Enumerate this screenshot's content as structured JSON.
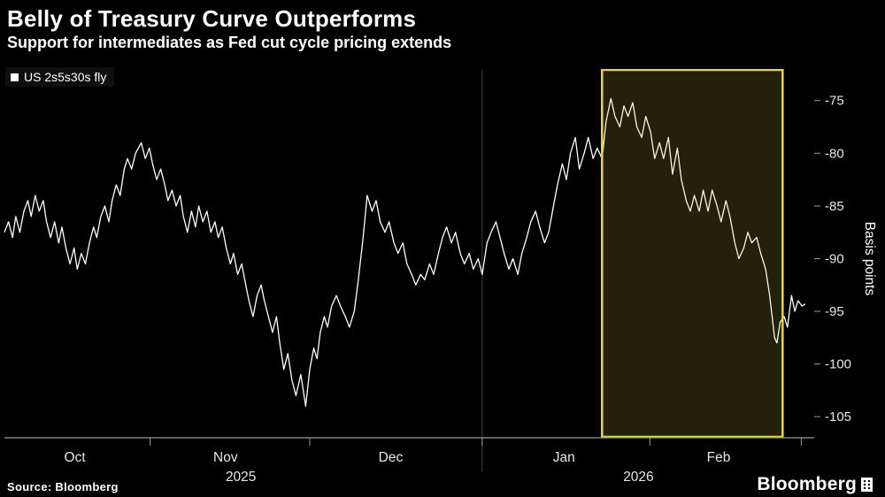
{
  "header": {
    "title": "Belly of Treasury Curve Outperforms",
    "subtitle": "Support for intermediates as Fed cut cycle pricing extends"
  },
  "legend": {
    "label": "US 2s5s30s fly",
    "swatch_color": "#FFFFFF"
  },
  "footer": {
    "source": "Source: Bloomberg",
    "brand": "Bloomberg"
  },
  "colors": {
    "background": "#000000",
    "line": "#FFFFFF",
    "axis": "#9a9a9a",
    "tick_text": "#e6e6e6",
    "year_divider": "#3d3d3d",
    "highlight_border": "#e3d54f",
    "highlight_fill": "rgba(222,205,70,0.16)"
  },
  "chart_data": {
    "type": "line",
    "title": "Belly of Treasury Curve Outperforms",
    "subtitle": "Support for intermediates as Fed cut cycle pricing extends",
    "ylabel": "Basis points",
    "xlabel": "",
    "ylim": [
      -107,
      -72
    ],
    "yticks": [
      -75,
      -80,
      -85,
      -90,
      -95,
      -100,
      -105
    ],
    "grid": false,
    "legend_position": "top-left",
    "x_axis": {
      "month_labels": [
        {
          "label": "Oct",
          "pos": 0.087
        },
        {
          "label": "Nov",
          "pos": 0.273
        },
        {
          "label": "Dec",
          "pos": 0.477
        },
        {
          "label": "Jan",
          "pos": 0.691
        },
        {
          "label": "Feb",
          "pos": 0.882
        }
      ],
      "year_labels": [
        {
          "label": "2025",
          "pos": 0.292
        },
        {
          "label": "2026",
          "pos": 0.783
        }
      ],
      "month_boundaries": [
        0.18,
        0.377,
        0.59,
        0.797,
        0.984
      ],
      "year_divider_pos": 0.59
    },
    "highlight": {
      "x0": 0.738,
      "x1": 0.961
    },
    "series": [
      {
        "name": "US 2s5s30s fly",
        "color": "#FFFFFF",
        "points": [
          [
            0.0,
            -87.5
          ],
          [
            0.005,
            -86.5
          ],
          [
            0.01,
            -88.0
          ],
          [
            0.014,
            -86.0
          ],
          [
            0.019,
            -87.5
          ],
          [
            0.024,
            -85.5
          ],
          [
            0.029,
            -84.5
          ],
          [
            0.033,
            -86.0
          ],
          [
            0.038,
            -84.0
          ],
          [
            0.043,
            -85.5
          ],
          [
            0.048,
            -84.5
          ],
          [
            0.052,
            -86.5
          ],
          [
            0.057,
            -88.0
          ],
          [
            0.062,
            -86.5
          ],
          [
            0.067,
            -88.5
          ],
          [
            0.071,
            -87.0
          ],
          [
            0.076,
            -89.0
          ],
          [
            0.081,
            -90.5
          ],
          [
            0.086,
            -89.0
          ],
          [
            0.09,
            -91.0
          ],
          [
            0.095,
            -89.5
          ],
          [
            0.1,
            -90.5
          ],
          [
            0.105,
            -88.5
          ],
          [
            0.11,
            -87.0
          ],
          [
            0.114,
            -88.0
          ],
          [
            0.119,
            -86.0
          ],
          [
            0.124,
            -85.0
          ],
          [
            0.129,
            -86.5
          ],
          [
            0.133,
            -84.5
          ],
          [
            0.138,
            -83.0
          ],
          [
            0.143,
            -84.0
          ],
          [
            0.148,
            -81.5
          ],
          [
            0.152,
            -80.5
          ],
          [
            0.157,
            -81.5
          ],
          [
            0.162,
            -80.0
          ],
          [
            0.169,
            -79.0
          ],
          [
            0.174,
            -80.5
          ],
          [
            0.179,
            -79.5
          ],
          [
            0.183,
            -81.0
          ],
          [
            0.188,
            -82.5
          ],
          [
            0.193,
            -81.5
          ],
          [
            0.198,
            -83.0
          ],
          [
            0.202,
            -84.5
          ],
          [
            0.207,
            -83.5
          ],
          [
            0.212,
            -85.0
          ],
          [
            0.217,
            -84.0
          ],
          [
            0.221,
            -86.0
          ],
          [
            0.226,
            -87.5
          ],
          [
            0.231,
            -85.5
          ],
          [
            0.236,
            -87.0
          ],
          [
            0.24,
            -85.0
          ],
          [
            0.245,
            -86.5
          ],
          [
            0.25,
            -85.5
          ],
          [
            0.255,
            -87.5
          ],
          [
            0.26,
            -86.5
          ],
          [
            0.264,
            -88.0
          ],
          [
            0.269,
            -87.0
          ],
          [
            0.274,
            -89.0
          ],
          [
            0.279,
            -90.5
          ],
          [
            0.283,
            -89.5
          ],
          [
            0.288,
            -91.5
          ],
          [
            0.293,
            -90.5
          ],
          [
            0.298,
            -92.5
          ],
          [
            0.302,
            -94.0
          ],
          [
            0.307,
            -95.5
          ],
          [
            0.312,
            -93.5
          ],
          [
            0.317,
            -92.5
          ],
          [
            0.321,
            -94.0
          ],
          [
            0.326,
            -95.5
          ],
          [
            0.331,
            -97.0
          ],
          [
            0.336,
            -95.5
          ],
          [
            0.34,
            -98.0
          ],
          [
            0.345,
            -100.5
          ],
          [
            0.35,
            -99.0
          ],
          [
            0.355,
            -101.5
          ],
          [
            0.36,
            -103.0
          ],
          [
            0.366,
            -101.0
          ],
          [
            0.372,
            -104.0
          ],
          [
            0.377,
            -100.5
          ],
          [
            0.382,
            -98.5
          ],
          [
            0.386,
            -99.5
          ],
          [
            0.39,
            -97.0
          ],
          [
            0.395,
            -95.5
          ],
          [
            0.399,
            -96.5
          ],
          [
            0.404,
            -94.5
          ],
          [
            0.41,
            -93.5
          ],
          [
            0.415,
            -94.5
          ],
          [
            0.421,
            -95.5
          ],
          [
            0.426,
            -96.5
          ],
          [
            0.432,
            -95.0
          ],
          [
            0.437,
            -92.0
          ],
          [
            0.443,
            -88.0
          ],
          [
            0.448,
            -84.0
          ],
          [
            0.454,
            -85.5
          ],
          [
            0.459,
            -84.5
          ],
          [
            0.464,
            -86.5
          ],
          [
            0.47,
            -87.5
          ],
          [
            0.475,
            -86.5
          ],
          [
            0.481,
            -88.5
          ],
          [
            0.486,
            -89.5
          ],
          [
            0.492,
            -88.5
          ],
          [
            0.497,
            -90.5
          ],
          [
            0.503,
            -91.5
          ],
          [
            0.508,
            -92.5
          ],
          [
            0.514,
            -91.5
          ],
          [
            0.519,
            -92.0
          ],
          [
            0.525,
            -90.5
          ],
          [
            0.53,
            -91.5
          ],
          [
            0.536,
            -89.5
          ],
          [
            0.541,
            -88.0
          ],
          [
            0.546,
            -87.0
          ],
          [
            0.552,
            -88.5
          ],
          [
            0.557,
            -87.5
          ],
          [
            0.563,
            -89.5
          ],
          [
            0.568,
            -90.5
          ],
          [
            0.574,
            -89.5
          ],
          [
            0.579,
            -91.0
          ],
          [
            0.585,
            -90.0
          ],
          [
            0.59,
            -91.5
          ],
          [
            0.596,
            -88.5
          ],
          [
            0.601,
            -87.5
          ],
          [
            0.607,
            -86.5
          ],
          [
            0.612,
            -88.0
          ],
          [
            0.617,
            -89.5
          ],
          [
            0.623,
            -91.0
          ],
          [
            0.628,
            -90.0
          ],
          [
            0.634,
            -91.5
          ],
          [
            0.639,
            -89.5
          ],
          [
            0.645,
            -88.0
          ],
          [
            0.65,
            -86.5
          ],
          [
            0.656,
            -85.5
          ],
          [
            0.661,
            -87.0
          ],
          [
            0.667,
            -88.5
          ],
          [
            0.672,
            -87.5
          ],
          [
            0.678,
            -85.0
          ],
          [
            0.683,
            -83.0
          ],
          [
            0.689,
            -81.0
          ],
          [
            0.694,
            -82.5
          ],
          [
            0.699,
            -80.0
          ],
          [
            0.705,
            -78.5
          ],
          [
            0.71,
            -81.5
          ],
          [
            0.716,
            -80.0
          ],
          [
            0.721,
            -78.5
          ],
          [
            0.727,
            -80.5
          ],
          [
            0.732,
            -79.5
          ],
          [
            0.738,
            -80.5
          ],
          [
            0.743,
            -77.0
          ],
          [
            0.749,
            -74.8
          ],
          [
            0.754,
            -76.5
          ],
          [
            0.76,
            -77.5
          ],
          [
            0.765,
            -75.5
          ],
          [
            0.77,
            -76.5
          ],
          [
            0.776,
            -75.2
          ],
          [
            0.781,
            -77.5
          ],
          [
            0.787,
            -78.5
          ],
          [
            0.792,
            -76.5
          ],
          [
            0.798,
            -78.0
          ],
          [
            0.803,
            -80.5
          ],
          [
            0.809,
            -79.0
          ],
          [
            0.814,
            -80.5
          ],
          [
            0.82,
            -78.5
          ],
          [
            0.825,
            -82.0
          ],
          [
            0.831,
            -79.5
          ],
          [
            0.836,
            -82.5
          ],
          [
            0.842,
            -84.5
          ],
          [
            0.847,
            -85.5
          ],
          [
            0.852,
            -84.0
          ],
          [
            0.858,
            -85.5
          ],
          [
            0.863,
            -83.5
          ],
          [
            0.869,
            -85.5
          ],
          [
            0.874,
            -83.5
          ],
          [
            0.88,
            -85.0
          ],
          [
            0.885,
            -86.5
          ],
          [
            0.891,
            -84.5
          ],
          [
            0.896,
            -86.0
          ],
          [
            0.902,
            -88.5
          ],
          [
            0.907,
            -90.0
          ],
          [
            0.913,
            -89.0
          ],
          [
            0.918,
            -87.5
          ],
          [
            0.923,
            -88.5
          ],
          [
            0.929,
            -88.0
          ],
          [
            0.934,
            -89.5
          ],
          [
            0.94,
            -91.0
          ],
          [
            0.945,
            -93.5
          ],
          [
            0.951,
            -97.5
          ],
          [
            0.954,
            -98.0
          ],
          [
            0.958,
            -96.0
          ],
          [
            0.963,
            -95.5
          ],
          [
            0.967,
            -96.5
          ],
          [
            0.972,
            -93.5
          ],
          [
            0.976,
            -95.0
          ],
          [
            0.98,
            -94.0
          ],
          [
            0.985,
            -94.5
          ],
          [
            0.989,
            -94.3
          ]
        ]
      }
    ]
  }
}
